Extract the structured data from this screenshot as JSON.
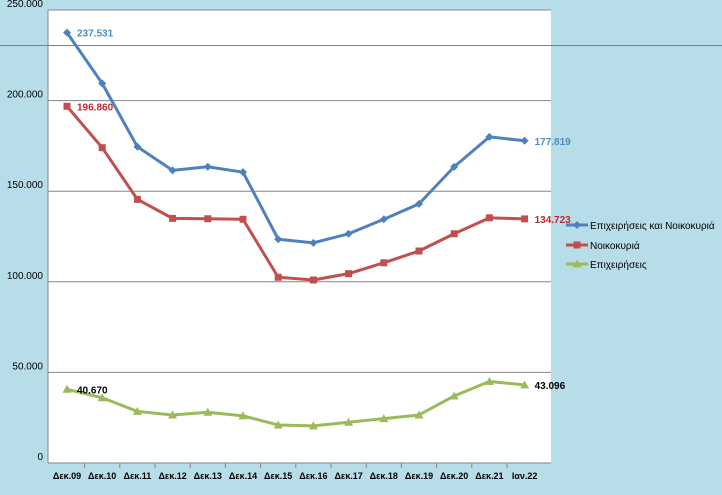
{
  "chart_data": {
    "type": "line",
    "categories": [
      "Δεκ.09",
      "Δεκ.10",
      "Δεκ.11",
      "Δεκ.12",
      "Δεκ.13",
      "Δεκ.14",
      "Δεκ.15",
      "Δεκ.16",
      "Δεκ.17",
      "Δεκ.18",
      "Δεκ.19",
      "Δεκ.20",
      "Δεκ.21",
      "Ιαν.22"
    ],
    "series": [
      {
        "name": "Επιχειρήσεις και Νοικοκυριά",
        "color": "#4f81bd",
        "label_color": "#4a8ec4",
        "marker": "diamond",
        "values": [
          237531,
          209500,
          174500,
          161500,
          163500,
          160500,
          123500,
          121500,
          126500,
          134500,
          143000,
          163500,
          180000,
          177819
        ],
        "labels": [
          {
            "index": 0,
            "text": "237.531"
          },
          {
            "index": 13,
            "text": "177.819"
          }
        ]
      },
      {
        "name": "Νοικοκυριά",
        "color": "#c0504d",
        "label_color": "#c0282d",
        "marker": "square",
        "values": [
          196860,
          174000,
          145500,
          135000,
          134800,
          134500,
          102500,
          101000,
          104500,
          110500,
          117000,
          126500,
          135300,
          134723
        ],
        "labels": [
          {
            "index": 0,
            "text": "196.860"
          },
          {
            "index": 13,
            "text": "134.723"
          }
        ]
      },
      {
        "name": "Επιχειρήσεις",
        "color": "#9bbb59",
        "label_color": "#000000",
        "marker": "triangle",
        "values": [
          40670,
          36000,
          28500,
          26500,
          28000,
          26000,
          21000,
          20500,
          22500,
          24500,
          26500,
          37000,
          45000,
          43096
        ],
        "labels": [
          {
            "index": 0,
            "text": "40.670"
          },
          {
            "index": 13,
            "text": "43.096"
          }
        ]
      }
    ],
    "ylim": [
      0,
      250000
    ],
    "yticks": [
      {
        "value": 0,
        "label": "0"
      },
      {
        "value": 50000,
        "label": "50.000"
      },
      {
        "value": 100000,
        "label": "100.000"
      },
      {
        "value": 150000,
        "label": "150.000"
      },
      {
        "value": 200000,
        "label": "200.000"
      },
      {
        "value": 250000,
        "label": "250.000"
      }
    ],
    "grid": true,
    "legend_position": "right"
  }
}
